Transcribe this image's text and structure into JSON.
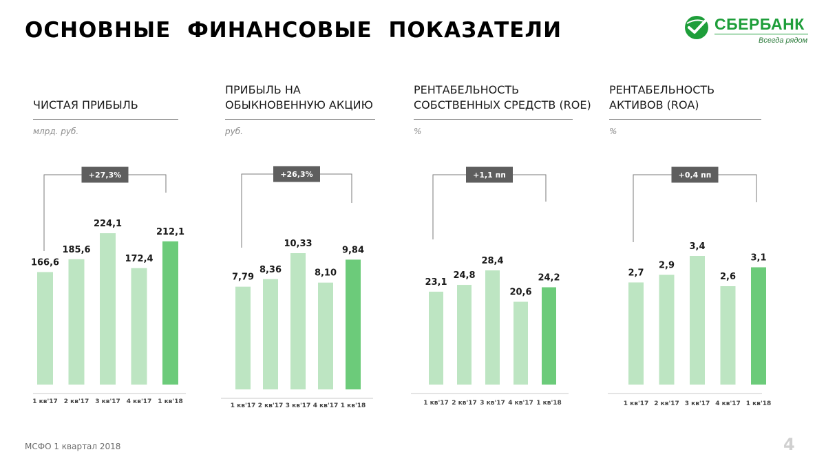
{
  "header": {
    "title": "ОСНОВНЫЕ  ФИНАНСОВЫЕ  ПОКАЗАТЕЛИ"
  },
  "logo": {
    "name": "СБЕРБАНК",
    "tagline": "Всегда рядом",
    "color": "#1e9e3a"
  },
  "colors": {
    "bar_light": "#bde5c2",
    "bar_accent": "#6ccb7a",
    "badge": "#5e5e5e",
    "bracket": "#7a7a7a"
  },
  "chart_data": [
    {
      "type": "bar",
      "title": "ЧИСТАЯ ПРИБЫЛЬ",
      "unit": "млрд. руб.",
      "categories": [
        "1 кв'17",
        "2 кв'17",
        "3 кв'17",
        "4 кв'17",
        "1 кв'18"
      ],
      "values": [
        166.6,
        185.6,
        224.1,
        172.4,
        212.1
      ],
      "labels": [
        "166,6",
        "185,6",
        "224,1",
        "172,4",
        "212,1"
      ],
      "highlight_index": 4,
      "change": "+27,3%"
    },
    {
      "type": "bar",
      "title": "ПРИБЫЛЬ НА\nОБЫКНОВЕННУЮ  АКЦИЮ",
      "unit": "руб.",
      "categories": [
        "1 кв'17",
        "2 кв'17",
        "3 кв'17",
        "4 кв'17",
        "1 кв'18"
      ],
      "values": [
        7.79,
        8.36,
        10.33,
        8.1,
        9.84
      ],
      "labels": [
        "7,79",
        "8,36",
        "10,33",
        "8,10",
        "9,84"
      ],
      "highlight_index": 4,
      "change": "+26,3%"
    },
    {
      "type": "bar",
      "title": "РЕНТАБЕЛЬНОСТЬ\nСОБСТВЕННЫХ СРЕДСТВ (ROE)",
      "unit": "%",
      "categories": [
        "1 кв'17",
        "2 кв'17",
        "3 кв'17",
        "4 кв'17",
        "1 кв'18"
      ],
      "values": [
        23.1,
        24.8,
        28.4,
        20.6,
        24.2
      ],
      "labels": [
        "23,1",
        "24,8",
        "28,4",
        "20,6",
        "24,2"
      ],
      "highlight_index": 4,
      "change": "+1,1 пп"
    },
    {
      "type": "bar",
      "title": "РЕНТАБЕЛЬНОСТЬ\nАКТИВОВ (ROA)",
      "unit": "%",
      "categories": [
        "1 кв'17",
        "2 кв'17",
        "3 кв'17",
        "4 кв'17",
        "1 кв'18"
      ],
      "values": [
        2.7,
        2.9,
        3.4,
        2.6,
        3.1
      ],
      "labels": [
        "2,7",
        "2,9",
        "3,4",
        "2,6",
        "3,1"
      ],
      "highlight_index": 4,
      "change": "+0,4 пп"
    }
  ],
  "footer": {
    "source": "МСФО 1 квартал 2018",
    "page": "4"
  }
}
